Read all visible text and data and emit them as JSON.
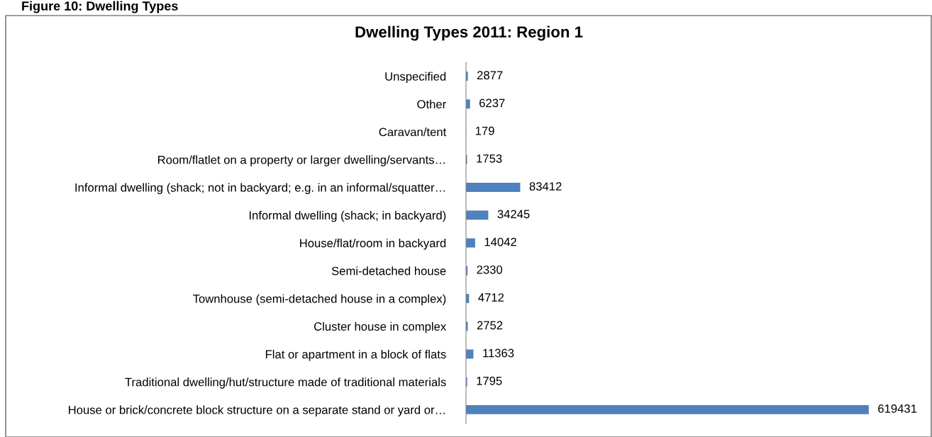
{
  "chart_data": {
    "type": "bar",
    "orientation": "horizontal",
    "title": "Dwelling Types 2011: Region 1",
    "categories": [
      "Unspecified",
      "Other",
      "Caravan/tent",
      "Room/flatlet on a property or larger dwelling/servants…",
      "Informal dwelling (shack; not in backyard; e.g. in an informal/squatter…",
      "Informal dwelling (shack; in backyard)",
      "House/flat/room in backyard",
      "Semi-detached house",
      "Townhouse (semi-detached house in a complex)",
      "Cluster house in complex",
      "Flat or apartment in a block of flats",
      "Traditional dwelling/hut/structure made of traditional materials",
      "House or brick/concrete block structure on a separate stand or yard or…"
    ],
    "values": [
      2877,
      6237,
      179,
      1753,
      83412,
      34245,
      14042,
      2330,
      4712,
      2752,
      11363,
      1795,
      619431
    ],
    "color": "#4f81bd",
    "data_labels": true,
    "grid": false,
    "legend": false,
    "annotations": [
      "Figure 10: Dwelling Types"
    ]
  }
}
